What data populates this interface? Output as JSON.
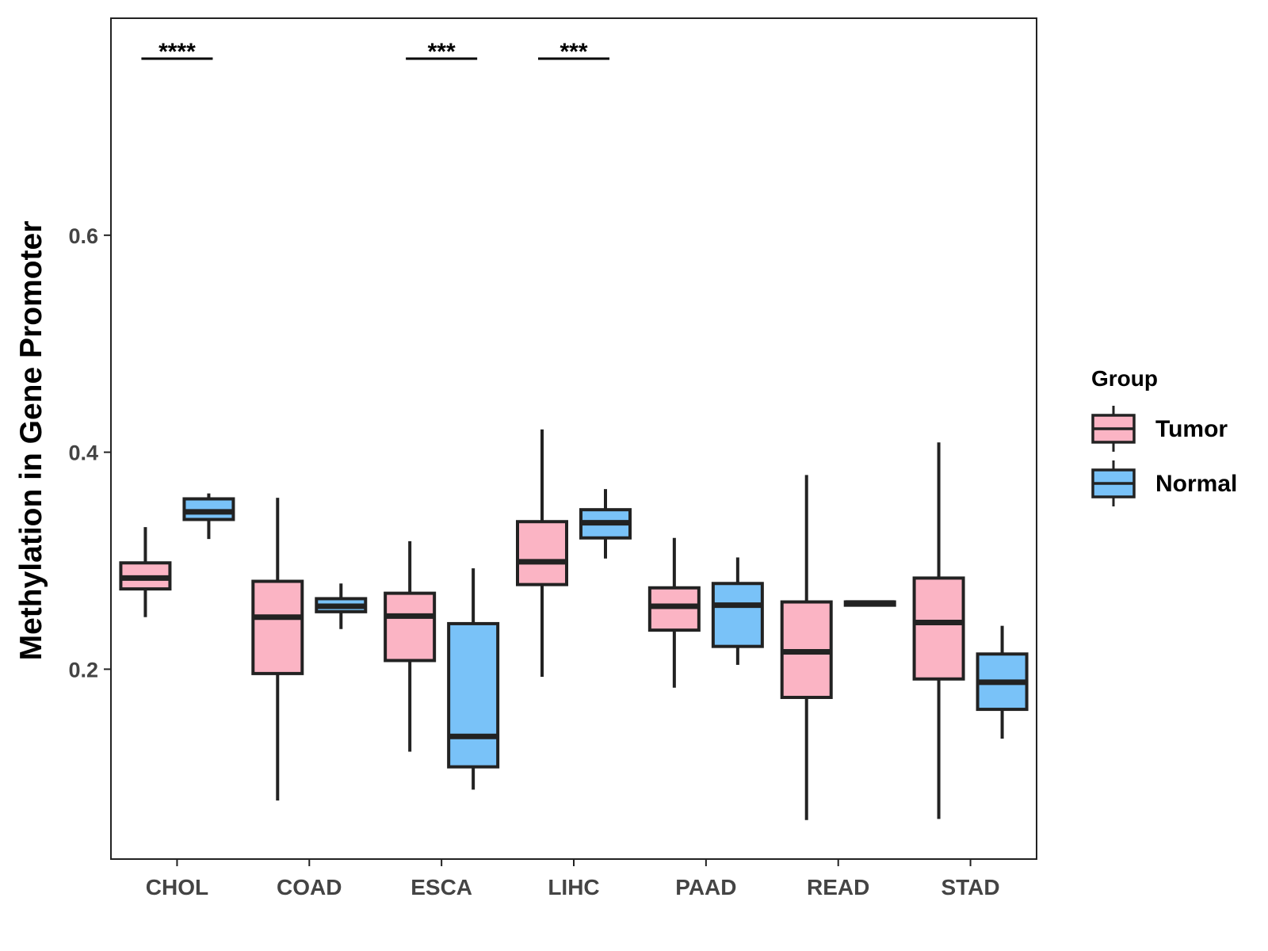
{
  "chart_data": {
    "type": "boxplot",
    "title": "",
    "xlabel": "",
    "ylabel": "Methylation in Gene Promoter",
    "ylim": [
      0.025,
      0.8
    ],
    "yticks": [
      0.2,
      0.4,
      0.6
    ],
    "ytick_labels": [
      "0.2",
      "0.4",
      "0.6"
    ],
    "categories": [
      "CHOL",
      "COAD",
      "ESCA",
      "LIHC",
      "PAAD",
      "READ",
      "STAD"
    ],
    "legend": {
      "title": "Group",
      "position": "right",
      "entries": [
        {
          "label": "Tumor",
          "color": "#FBB4C4"
        },
        {
          "label": "Normal",
          "color": "#79C2F8"
        }
      ]
    },
    "series": [
      {
        "name": "Tumor",
        "color": "#FBB4C4",
        "boxes": [
          {
            "category": "CHOL",
            "min": 0.248,
            "q1": 0.274,
            "median": 0.284,
            "q3": 0.298,
            "max": 0.331
          },
          {
            "category": "COAD",
            "min": 0.079,
            "q1": 0.196,
            "median": 0.248,
            "q3": 0.281,
            "max": 0.358
          },
          {
            "category": "ESCA",
            "min": 0.124,
            "q1": 0.208,
            "median": 0.249,
            "q3": 0.27,
            "max": 0.318
          },
          {
            "category": "LIHC",
            "min": 0.193,
            "q1": 0.278,
            "median": 0.299,
            "q3": 0.336,
            "max": 0.421
          },
          {
            "category": "PAAD",
            "min": 0.183,
            "q1": 0.236,
            "median": 0.258,
            "q3": 0.275,
            "max": 0.321
          },
          {
            "category": "READ",
            "min": 0.061,
            "q1": 0.174,
            "median": 0.216,
            "q3": 0.262,
            "max": 0.379
          },
          {
            "category": "STAD",
            "min": 0.062,
            "q1": 0.191,
            "median": 0.243,
            "q3": 0.284,
            "max": 0.409
          }
        ]
      },
      {
        "name": "Normal",
        "color": "#79C2F8",
        "boxes": [
          {
            "category": "CHOL",
            "min": 0.32,
            "q1": 0.338,
            "median": 0.345,
            "q3": 0.357,
            "max": 0.362
          },
          {
            "category": "COAD",
            "min": 0.237,
            "q1": 0.253,
            "median": 0.258,
            "q3": 0.265,
            "max": 0.279
          },
          {
            "category": "ESCA",
            "min": 0.089,
            "q1": 0.11,
            "median": 0.138,
            "q3": 0.242,
            "max": 0.293
          },
          {
            "category": "LIHC",
            "min": 0.302,
            "q1": 0.321,
            "median": 0.335,
            "q3": 0.347,
            "max": 0.366
          },
          {
            "category": "PAAD",
            "min": 0.204,
            "q1": 0.221,
            "median": 0.259,
            "q3": 0.279,
            "max": 0.303
          },
          {
            "category": "READ",
            "min": 0.259,
            "q1": 0.259,
            "median": 0.261,
            "q3": 0.262,
            "max": 0.262
          },
          {
            "category": "STAD",
            "min": 0.136,
            "q1": 0.163,
            "median": 0.188,
            "q3": 0.214,
            "max": 0.24
          }
        ]
      }
    ],
    "annotations": [
      {
        "category": "CHOL",
        "text": "****"
      },
      {
        "category": "ESCA",
        "text": "***"
      },
      {
        "category": "LIHC",
        "text": "***"
      }
    ]
  }
}
